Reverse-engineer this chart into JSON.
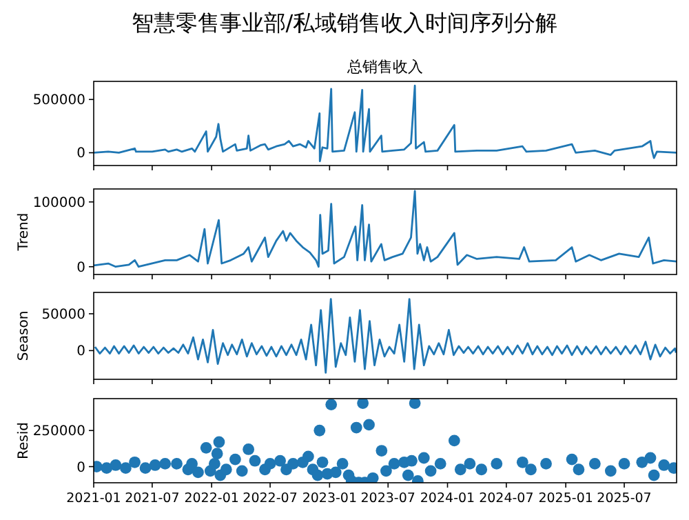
{
  "chart_data": [
    {
      "type": "line",
      "title": "智慧零售事业部/私域销售收入时间序列分解",
      "subtitle": "总销售收入",
      "xlim": [
        "2021-01-01",
        "2025-12-10"
      ],
      "xticks": [
        "2021-01",
        "2021-07",
        "2022-01",
        "2022-07",
        "2023-01",
        "2023-07",
        "2024-01",
        "2024-07",
        "2025-01",
        "2025-07"
      ],
      "ylim": [
        -120000,
        670000
      ],
      "yticks": [
        0,
        500000
      ],
      "tick_labels": "y",
      "grid": false,
      "series": [
        {
          "color": "#1f77b4",
          "x": [
            "2021-01-01",
            "2021-02-15",
            "2021-03-20",
            "2021-05-08",
            "2021-05-12",
            "2021-07-01",
            "2021-08-10",
            "2021-08-20",
            "2021-09-15",
            "2021-10-01",
            "2021-11-01",
            "2021-11-10",
            "2021-12-15",
            "2021-12-20",
            "2022-01-15",
            "2022-01-22",
            "2022-01-28",
            "2022-02-05",
            "2022-03-15",
            "2022-03-20",
            "2022-04-20",
            "2022-04-25",
            "2022-05-01",
            "2022-06-01",
            "2022-06-15",
            "2022-06-25",
            "2022-07-20",
            "2022-08-15",
            "2022-08-28",
            "2022-09-10",
            "2022-10-01",
            "2022-10-20",
            "2022-10-27",
            "2022-11-15",
            "2022-12-01",
            "2022-12-02",
            "2022-12-10",
            "2022-12-25",
            "2023-01-06",
            "2023-01-10",
            "2023-02-15",
            "2023-03-20",
            "2023-03-25",
            "2023-04-12",
            "2023-04-15",
            "2023-05-03",
            "2023-05-06",
            "2023-06-10",
            "2023-06-13",
            "2023-07-15",
            "2023-08-20",
            "2023-09-10",
            "2023-09-22",
            "2023-09-25",
            "2023-10-20",
            "2023-10-25",
            "2023-12-01",
            "2024-01-22",
            "2024-01-25",
            "2024-04-01",
            "2024-06-01",
            "2024-08-20",
            "2024-09-01",
            "2024-11-01",
            "2025-01-20",
            "2025-02-01",
            "2025-04-01",
            "2025-05-20",
            "2025-06-01",
            "2025-08-25",
            "2025-09-20",
            "2025-09-25",
            "2025-10-01",
            "2025-10-10",
            "2025-12-10"
          ],
          "values": [
            0,
            10000,
            0,
            40000,
            10000,
            10000,
            30000,
            10000,
            30000,
            10000,
            40000,
            10000,
            200000,
            10000,
            150000,
            270000,
            130000,
            10000,
            80000,
            20000,
            40000,
            160000,
            20000,
            70000,
            80000,
            30000,
            60000,
            80000,
            110000,
            60000,
            80000,
            50000,
            110000,
            40000,
            370000,
            -80000,
            50000,
            40000,
            600000,
            10000,
            20000,
            380000,
            10000,
            590000,
            10000,
            410000,
            10000,
            160000,
            10000,
            20000,
            30000,
            90000,
            630000,
            40000,
            100000,
            10000,
            20000,
            260000,
            10000,
            20000,
            20000,
            60000,
            10000,
            20000,
            80000,
            0,
            20000,
            -20000,
            20000,
            60000,
            110000,
            20000,
            -50000,
            10000,
            0
          ]
        }
      ]
    },
    {
      "type": "line",
      "ylabel": "Trend",
      "xlim": [
        "2021-01-01",
        "2025-12-10"
      ],
      "xticks": [
        "2021-01",
        "2021-07",
        "2022-01",
        "2022-07",
        "2023-01",
        "2023-07",
        "2024-01",
        "2024-07",
        "2025-01",
        "2025-07"
      ],
      "ylim": [
        -12000,
        120000
      ],
      "yticks": [
        0,
        100000
      ],
      "tick_labels": "y",
      "grid": false,
      "series": [
        {
          "color": "#1f77b4",
          "x": [
            "2021-01-01",
            "2021-02-15",
            "2021-03-10",
            "2021-04-20",
            "2021-05-08",
            "2021-05-20",
            "2021-08-10",
            "2021-09-15",
            "2021-10-25",
            "2021-11-20",
            "2021-12-10",
            "2021-12-20",
            "2022-01-23",
            "2022-02-01",
            "2022-03-01",
            "2022-04-10",
            "2022-04-25",
            "2022-05-05",
            "2022-06-15",
            "2022-06-25",
            "2022-07-20",
            "2022-08-10",
            "2022-08-20",
            "2022-09-01",
            "2022-09-20",
            "2022-10-10",
            "2022-11-01",
            "2022-11-20",
            "2022-11-28",
            "2022-12-03",
            "2022-12-10",
            "2022-12-28",
            "2023-01-06",
            "2023-01-15",
            "2023-02-15",
            "2023-03-22",
            "2023-03-28",
            "2023-04-12",
            "2023-04-20",
            "2023-05-03",
            "2023-05-10",
            "2023-06-10",
            "2023-06-20",
            "2023-07-15",
            "2023-08-15",
            "2023-09-10",
            "2023-09-22",
            "2023-09-30",
            "2023-10-08",
            "2023-10-20",
            "2023-10-30",
            "2023-11-10",
            "2023-12-01",
            "2024-01-22",
            "2024-02-01",
            "2024-03-01",
            "2024-04-01",
            "2024-06-01",
            "2024-08-10",
            "2024-08-25",
            "2024-09-10",
            "2024-12-01",
            "2025-01-20",
            "2025-02-01",
            "2025-03-15",
            "2025-04-20",
            "2025-06-15",
            "2025-08-15",
            "2025-09-15",
            "2025-09-28",
            "2025-11-01",
            "2025-12-10"
          ],
          "values": [
            2000,
            5000,
            0,
            3000,
            10000,
            0,
            10000,
            10000,
            18000,
            8000,
            58000,
            5000,
            72000,
            5000,
            10000,
            20000,
            30000,
            8000,
            45000,
            15000,
            40000,
            55000,
            40000,
            52000,
            40000,
            30000,
            22000,
            10000,
            0,
            80000,
            20000,
            25000,
            97000,
            5000,
            15000,
            62000,
            10000,
            95000,
            10000,
            65000,
            8000,
            35000,
            10000,
            15000,
            20000,
            45000,
            117000,
            20000,
            35000,
            10000,
            30000,
            8000,
            15000,
            52000,
            3000,
            18000,
            12000,
            15000,
            12000,
            30000,
            8000,
            10000,
            30000,
            8000,
            18000,
            10000,
            20000,
            15000,
            45000,
            5000,
            10000,
            8000
          ]
        }
      ]
    },
    {
      "type": "line",
      "ylabel": "Season",
      "xlim": [
        "2021-01-01",
        "2025-12-10"
      ],
      "xticks": [
        "2021-01",
        "2021-07",
        "2022-01",
        "2022-07",
        "2023-01",
        "2023-07",
        "2024-01",
        "2024-07",
        "2025-01",
        "2025-07"
      ],
      "ylim": [
        -39000,
        79000
      ],
      "yticks": [
        0,
        50000
      ],
      "tick_labels": "y",
      "grid": false,
      "series": [
        {
          "color": "#1f77b4",
          "x": [
            "2021-01-05",
            "2021-01-20",
            "2021-02-05",
            "2021-02-20",
            "2021-03-05",
            "2021-03-20",
            "2021-04-05",
            "2021-04-20",
            "2021-05-05",
            "2021-05-20",
            "2021-06-05",
            "2021-06-20",
            "2021-07-05",
            "2021-07-20",
            "2021-08-05",
            "2021-08-20",
            "2021-09-05",
            "2021-09-20",
            "2021-10-05",
            "2021-10-20",
            "2021-11-05",
            "2021-11-20",
            "2021-12-05",
            "2021-12-20",
            "2022-01-05",
            "2022-01-20",
            "2022-02-05",
            "2022-02-20",
            "2022-03-05",
            "2022-03-20",
            "2022-04-05",
            "2022-04-20",
            "2022-05-05",
            "2022-05-20",
            "2022-06-05",
            "2022-06-20",
            "2022-07-05",
            "2022-07-20",
            "2022-08-05",
            "2022-08-20",
            "2022-09-05",
            "2022-09-20",
            "2022-10-05",
            "2022-10-20",
            "2022-11-05",
            "2022-11-20",
            "2022-12-05",
            "2022-12-20",
            "2023-01-05",
            "2023-01-20",
            "2023-02-05",
            "2023-02-20",
            "2023-03-05",
            "2023-03-20",
            "2023-04-05",
            "2023-04-20",
            "2023-05-05",
            "2023-05-20",
            "2023-06-05",
            "2023-06-20",
            "2023-07-05",
            "2023-07-20",
            "2023-08-05",
            "2023-08-20",
            "2023-09-05",
            "2023-09-20",
            "2023-10-05",
            "2023-10-20",
            "2023-11-05",
            "2023-11-20",
            "2023-12-05",
            "2023-12-20",
            "2024-01-05",
            "2024-01-20",
            "2024-02-05",
            "2024-02-20",
            "2024-03-05",
            "2024-03-20",
            "2024-04-05",
            "2024-04-20",
            "2024-05-05",
            "2024-05-20",
            "2024-06-05",
            "2024-06-20",
            "2024-07-05",
            "2024-07-20",
            "2024-08-05",
            "2024-08-20",
            "2024-09-05",
            "2024-09-20",
            "2024-10-05",
            "2024-10-20",
            "2024-11-05",
            "2024-11-20",
            "2024-12-05",
            "2024-12-20",
            "2025-01-05",
            "2025-01-20",
            "2025-02-05",
            "2025-02-20",
            "2025-03-05",
            "2025-03-20",
            "2025-04-05",
            "2025-04-20",
            "2025-05-05",
            "2025-05-20",
            "2025-06-05",
            "2025-06-20",
            "2025-07-05",
            "2025-07-20",
            "2025-08-05",
            "2025-08-20",
            "2025-09-05",
            "2025-09-20",
            "2025-10-05",
            "2025-10-20",
            "2025-11-05",
            "2025-11-20",
            "2025-12-05",
            "2025-12-08"
          ],
          "values": [
            5000,
            -4000,
            4000,
            -4000,
            6000,
            -4000,
            6000,
            -3000,
            7000,
            -4000,
            5000,
            -3000,
            5000,
            -4000,
            4000,
            -3000,
            3000,
            -3000,
            8000,
            -4000,
            18000,
            -12000,
            15000,
            -16000,
            28000,
            -18000,
            10000,
            -6000,
            8000,
            -5000,
            15000,
            -8000,
            10000,
            -5000,
            6000,
            -7000,
            5000,
            -8000,
            6000,
            -6000,
            8000,
            -6000,
            15000,
            -12000,
            35000,
            -20000,
            55000,
            -30000,
            70000,
            -22000,
            10000,
            -6000,
            45000,
            -15000,
            55000,
            -25000,
            40000,
            -20000,
            15000,
            -8000,
            5000,
            -4000,
            35000,
            -15000,
            70000,
            -25000,
            35000,
            -20000,
            6000,
            -5000,
            10000,
            -5000,
            28000,
            -6000,
            6000,
            -3000,
            5000,
            -4000,
            6000,
            -5000,
            5000,
            -4000,
            6000,
            -5000,
            5000,
            -5000,
            7000,
            -4000,
            10000,
            -5000,
            6000,
            -5000,
            5000,
            -6000,
            6000,
            -4000,
            7000,
            -6000,
            6000,
            -5000,
            5000,
            -4000,
            6000,
            -5000,
            5000,
            -4000,
            5000,
            -5000,
            6000,
            -4000,
            7000,
            -5000,
            12000,
            -12000,
            8000,
            -8000,
            4000,
            -4000,
            3000,
            -3000
          ]
        }
      ]
    },
    {
      "type": "scatter",
      "ylabel": "Resid",
      "xlim": [
        "2021-01-01",
        "2025-12-10"
      ],
      "xticks": [
        "2021-01",
        "2021-07",
        "2022-01",
        "2022-07",
        "2023-01",
        "2023-07",
        "2024-01",
        "2024-07",
        "2025-01",
        "2025-07"
      ],
      "ylim": [
        -112000,
        471000
      ],
      "yticks": [
        0,
        250000
      ],
      "grid": false,
      "marker": "circle",
      "series": [
        {
          "color": "#1f77b4",
          "x": [
            "2021-01-10",
            "2021-02-10",
            "2021-03-10",
            "2021-04-10",
            "2021-05-08",
            "2021-06-10",
            "2021-07-10",
            "2021-08-10",
            "2021-09-15",
            "2021-10-20",
            "2021-11-01",
            "2021-11-20",
            "2021-12-15",
            "2021-12-28",
            "2022-01-10",
            "2022-01-18",
            "2022-01-24",
            "2022-01-28",
            "2022-02-15",
            "2022-03-15",
            "2022-04-05",
            "2022-04-25",
            "2022-05-15",
            "2022-06-15",
            "2022-07-01",
            "2022-08-01",
            "2022-08-20",
            "2022-09-10",
            "2022-10-10",
            "2022-10-27",
            "2022-11-10",
            "2022-11-25",
            "2022-12-01",
            "2022-12-10",
            "2022-12-25",
            "2023-01-06",
            "2023-01-20",
            "2023-02-10",
            "2023-03-01",
            "2023-03-10",
            "2023-03-25",
            "2023-04-01",
            "2023-04-14",
            "2023-04-20",
            "2023-05-03",
            "2023-05-15",
            "2023-06-11",
            "2023-06-25",
            "2023-07-20",
            "2023-08-20",
            "2023-09-01",
            "2023-09-12",
            "2023-09-22",
            "2023-10-01",
            "2023-10-20",
            "2023-11-10",
            "2023-12-10",
            "2024-01-22",
            "2024-02-10",
            "2024-03-10",
            "2024-04-15",
            "2024-06-01",
            "2024-08-20",
            "2024-09-15",
            "2024-11-01",
            "2025-01-20",
            "2025-02-10",
            "2025-04-01",
            "2025-05-20",
            "2025-07-01",
            "2025-08-25",
            "2025-09-20",
            "2025-10-01",
            "2025-11-01",
            "2025-12-01"
          ],
          "values": [
            0,
            -10000,
            10000,
            -10000,
            30000,
            -10000,
            10000,
            20000,
            20000,
            -20000,
            20000,
            -40000,
            130000,
            -30000,
            20000,
            90000,
            170000,
            -60000,
            -20000,
            50000,
            -30000,
            120000,
            40000,
            -20000,
            20000,
            40000,
            -20000,
            20000,
            30000,
            70000,
            -20000,
            -60000,
            250000,
            30000,
            -50000,
            430000,
            -40000,
            20000,
            -60000,
            -100000,
            270000,
            -110000,
            440000,
            -110000,
            290000,
            -80000,
            110000,
            -30000,
            20000,
            30000,
            -60000,
            40000,
            440000,
            -100000,
            60000,
            -30000,
            20000,
            180000,
            -20000,
            20000,
            -20000,
            20000,
            30000,
            -20000,
            20000,
            50000,
            -20000,
            20000,
            -30000,
            20000,
            30000,
            60000,
            -60000,
            10000,
            -10000
          ]
        }
      ]
    }
  ]
}
